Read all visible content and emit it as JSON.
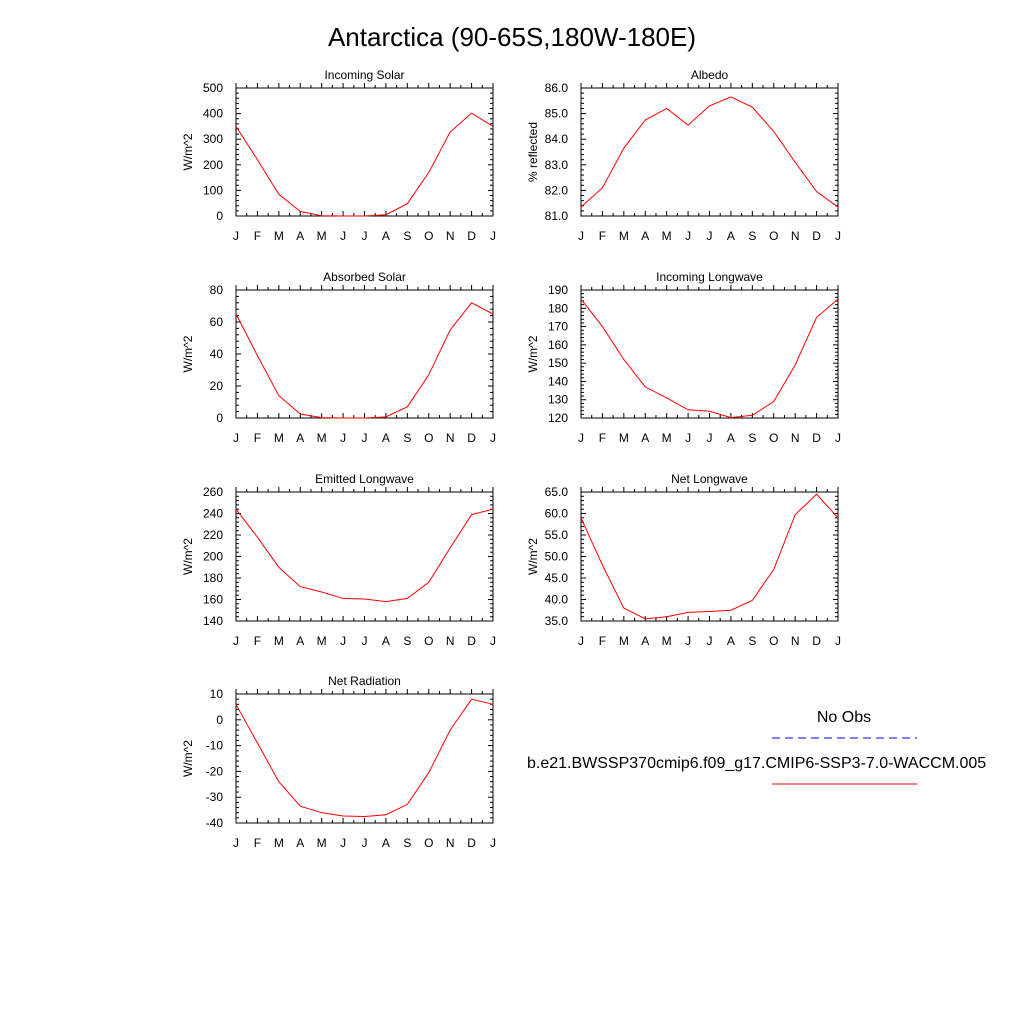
{
  "title": "Antarctica (90-65S,180W-180E)",
  "months": [
    "J",
    "F",
    "M",
    "A",
    "M",
    "J",
    "J",
    "A",
    "S",
    "O",
    "N",
    "D",
    "J"
  ],
  "legend": {
    "obs_label": "No Obs",
    "model_label": "b.e21.BWSSP370cmip6.f09_g17.CMIP6-SSP3-7.0-WACCM.005",
    "obs_color": "#0000ff",
    "model_color": "#ff0000"
  },
  "chart_data": [
    {
      "type": "line",
      "title": "Incoming Solar",
      "ylabel": "W/m^2",
      "ylim": [
        0,
        500
      ],
      "yticks": [
        0,
        100,
        200,
        300,
        400,
        500
      ],
      "ytick_labels": [
        "0",
        "100",
        "200",
        "300",
        "400",
        "500"
      ],
      "x": [
        "J",
        "F",
        "M",
        "A",
        "M",
        "J",
        "J",
        "A",
        "S",
        "O",
        "N",
        "D",
        "J"
      ],
      "values": [
        350,
        220,
        85,
        18,
        1,
        0,
        0,
        5,
        48,
        170,
        328,
        402,
        350
      ]
    },
    {
      "type": "line",
      "title": "Albedo",
      "ylabel": "% reflected",
      "ylim": [
        81.0,
        86.0
      ],
      "yticks": [
        81,
        82,
        83,
        84,
        85,
        86
      ],
      "ytick_labels": [
        "81.0",
        "82.0",
        "83.0",
        "84.0",
        "85.0",
        "86.0"
      ],
      "x": [
        "J",
        "F",
        "M",
        "A",
        "M",
        "J",
        "J",
        "A",
        "S",
        "O",
        "N",
        "D",
        "J"
      ],
      "values": [
        81.35,
        82.1,
        83.65,
        84.75,
        85.2,
        84.55,
        85.3,
        85.65,
        85.25,
        84.3,
        83.1,
        81.95,
        81.35
      ]
    },
    {
      "type": "line",
      "title": "Absorbed Solar",
      "ylabel": "W/m^2",
      "ylim": [
        0,
        80
      ],
      "yticks": [
        0,
        20,
        40,
        60,
        80
      ],
      "ytick_labels": [
        "0",
        "20",
        "40",
        "60",
        "80"
      ],
      "x": [
        "J",
        "F",
        "M",
        "A",
        "M",
        "J",
        "J",
        "A",
        "S",
        "O",
        "N",
        "D",
        "J"
      ],
      "values": [
        65,
        39,
        14,
        2.5,
        0.2,
        0,
        0,
        0.7,
        7,
        27,
        55,
        72,
        65
      ]
    },
    {
      "type": "line",
      "title": "Incoming Longwave",
      "ylabel": "W/m^2",
      "ylim": [
        120,
        190
      ],
      "yticks": [
        120,
        130,
        140,
        150,
        160,
        170,
        180,
        190
      ],
      "ytick_labels": [
        "120",
        "130",
        "140",
        "150",
        "160",
        "170",
        "180",
        "190"
      ],
      "x": [
        "J",
        "F",
        "M",
        "A",
        "M",
        "J",
        "J",
        "A",
        "S",
        "O",
        "N",
        "D",
        "J"
      ],
      "values": [
        185,
        170,
        152,
        137,
        131,
        124.5,
        123.7,
        120.2,
        121.5,
        129,
        149,
        175,
        185
      ]
    },
    {
      "type": "line",
      "title": "Emitted Longwave",
      "ylabel": "W/m^2",
      "ylim": [
        140,
        260
      ],
      "yticks": [
        140,
        160,
        180,
        200,
        220,
        240,
        260
      ],
      "ytick_labels": [
        "140",
        "160",
        "180",
        "200",
        "220",
        "240",
        "260"
      ],
      "x": [
        "J",
        "F",
        "M",
        "A",
        "M",
        "J",
        "J",
        "A",
        "S",
        "O",
        "N",
        "D",
        "J"
      ],
      "values": [
        244,
        218,
        190,
        172,
        167,
        161,
        160.5,
        158,
        161,
        176,
        208,
        239,
        244
      ]
    },
    {
      "type": "line",
      "title": "Net Longwave",
      "ylabel": "W/m^2",
      "ylim": [
        35.0,
        65.0
      ],
      "yticks": [
        35,
        40,
        45,
        50,
        55,
        60,
        65
      ],
      "ytick_labels": [
        "35.0",
        "40.0",
        "45.0",
        "50.0",
        "55.0",
        "60.0",
        "65.0"
      ],
      "x": [
        "J",
        "F",
        "M",
        "A",
        "M",
        "J",
        "J",
        "A",
        "S",
        "O",
        "N",
        "D",
        "J"
      ],
      "values": [
        59,
        48,
        38,
        35.5,
        36,
        37,
        37.2,
        37.5,
        39.8,
        47,
        59.7,
        64.5,
        59
      ]
    },
    {
      "type": "line",
      "title": "Net Radiation",
      "ylabel": "W/m^2",
      "ylim": [
        -40,
        10
      ],
      "yticks": [
        -40,
        -30,
        -20,
        -10,
        0,
        10
      ],
      "ytick_labels": [
        "-40",
        "-30",
        "-20",
        "-10",
        "0",
        "10"
      ],
      "x": [
        "J",
        "F",
        "M",
        "A",
        "M",
        "J",
        "J",
        "A",
        "S",
        "O",
        "N",
        "D",
        "J"
      ],
      "values": [
        6,
        -9,
        -24,
        -33.5,
        -36,
        -37.3,
        -37.5,
        -36.8,
        -32.8,
        -20.5,
        -4,
        8,
        6
      ]
    }
  ]
}
